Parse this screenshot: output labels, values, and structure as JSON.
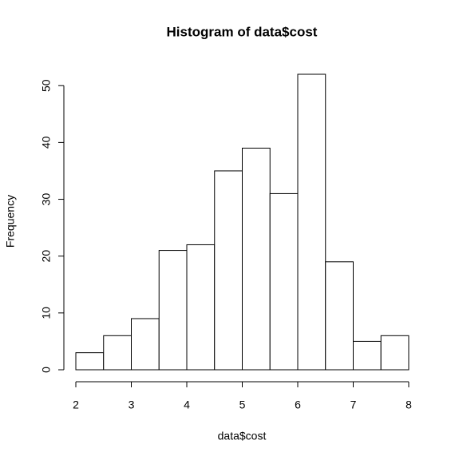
{
  "chart_data": {
    "type": "histogram",
    "title": "Histogram of data$cost",
    "x_label": "data$cost",
    "y_label": "Frequency",
    "bins": [
      2,
      2.5,
      3,
      3.5,
      4,
      4.5,
      5,
      5.5,
      6,
      6.5,
      7,
      7.5,
      8
    ],
    "values": [
      3,
      6,
      9,
      21,
      22,
      35,
      39,
      31,
      52,
      19,
      5,
      6
    ],
    "color": "#ffffff",
    "xlim": [
      2,
      8
    ],
    "xticks": [
      2,
      3,
      4,
      5,
      6,
      7,
      8
    ],
    "ylim": [
      0,
      52
    ],
    "yticks": [
      0,
      10,
      20,
      30,
      40,
      50
    ]
  }
}
